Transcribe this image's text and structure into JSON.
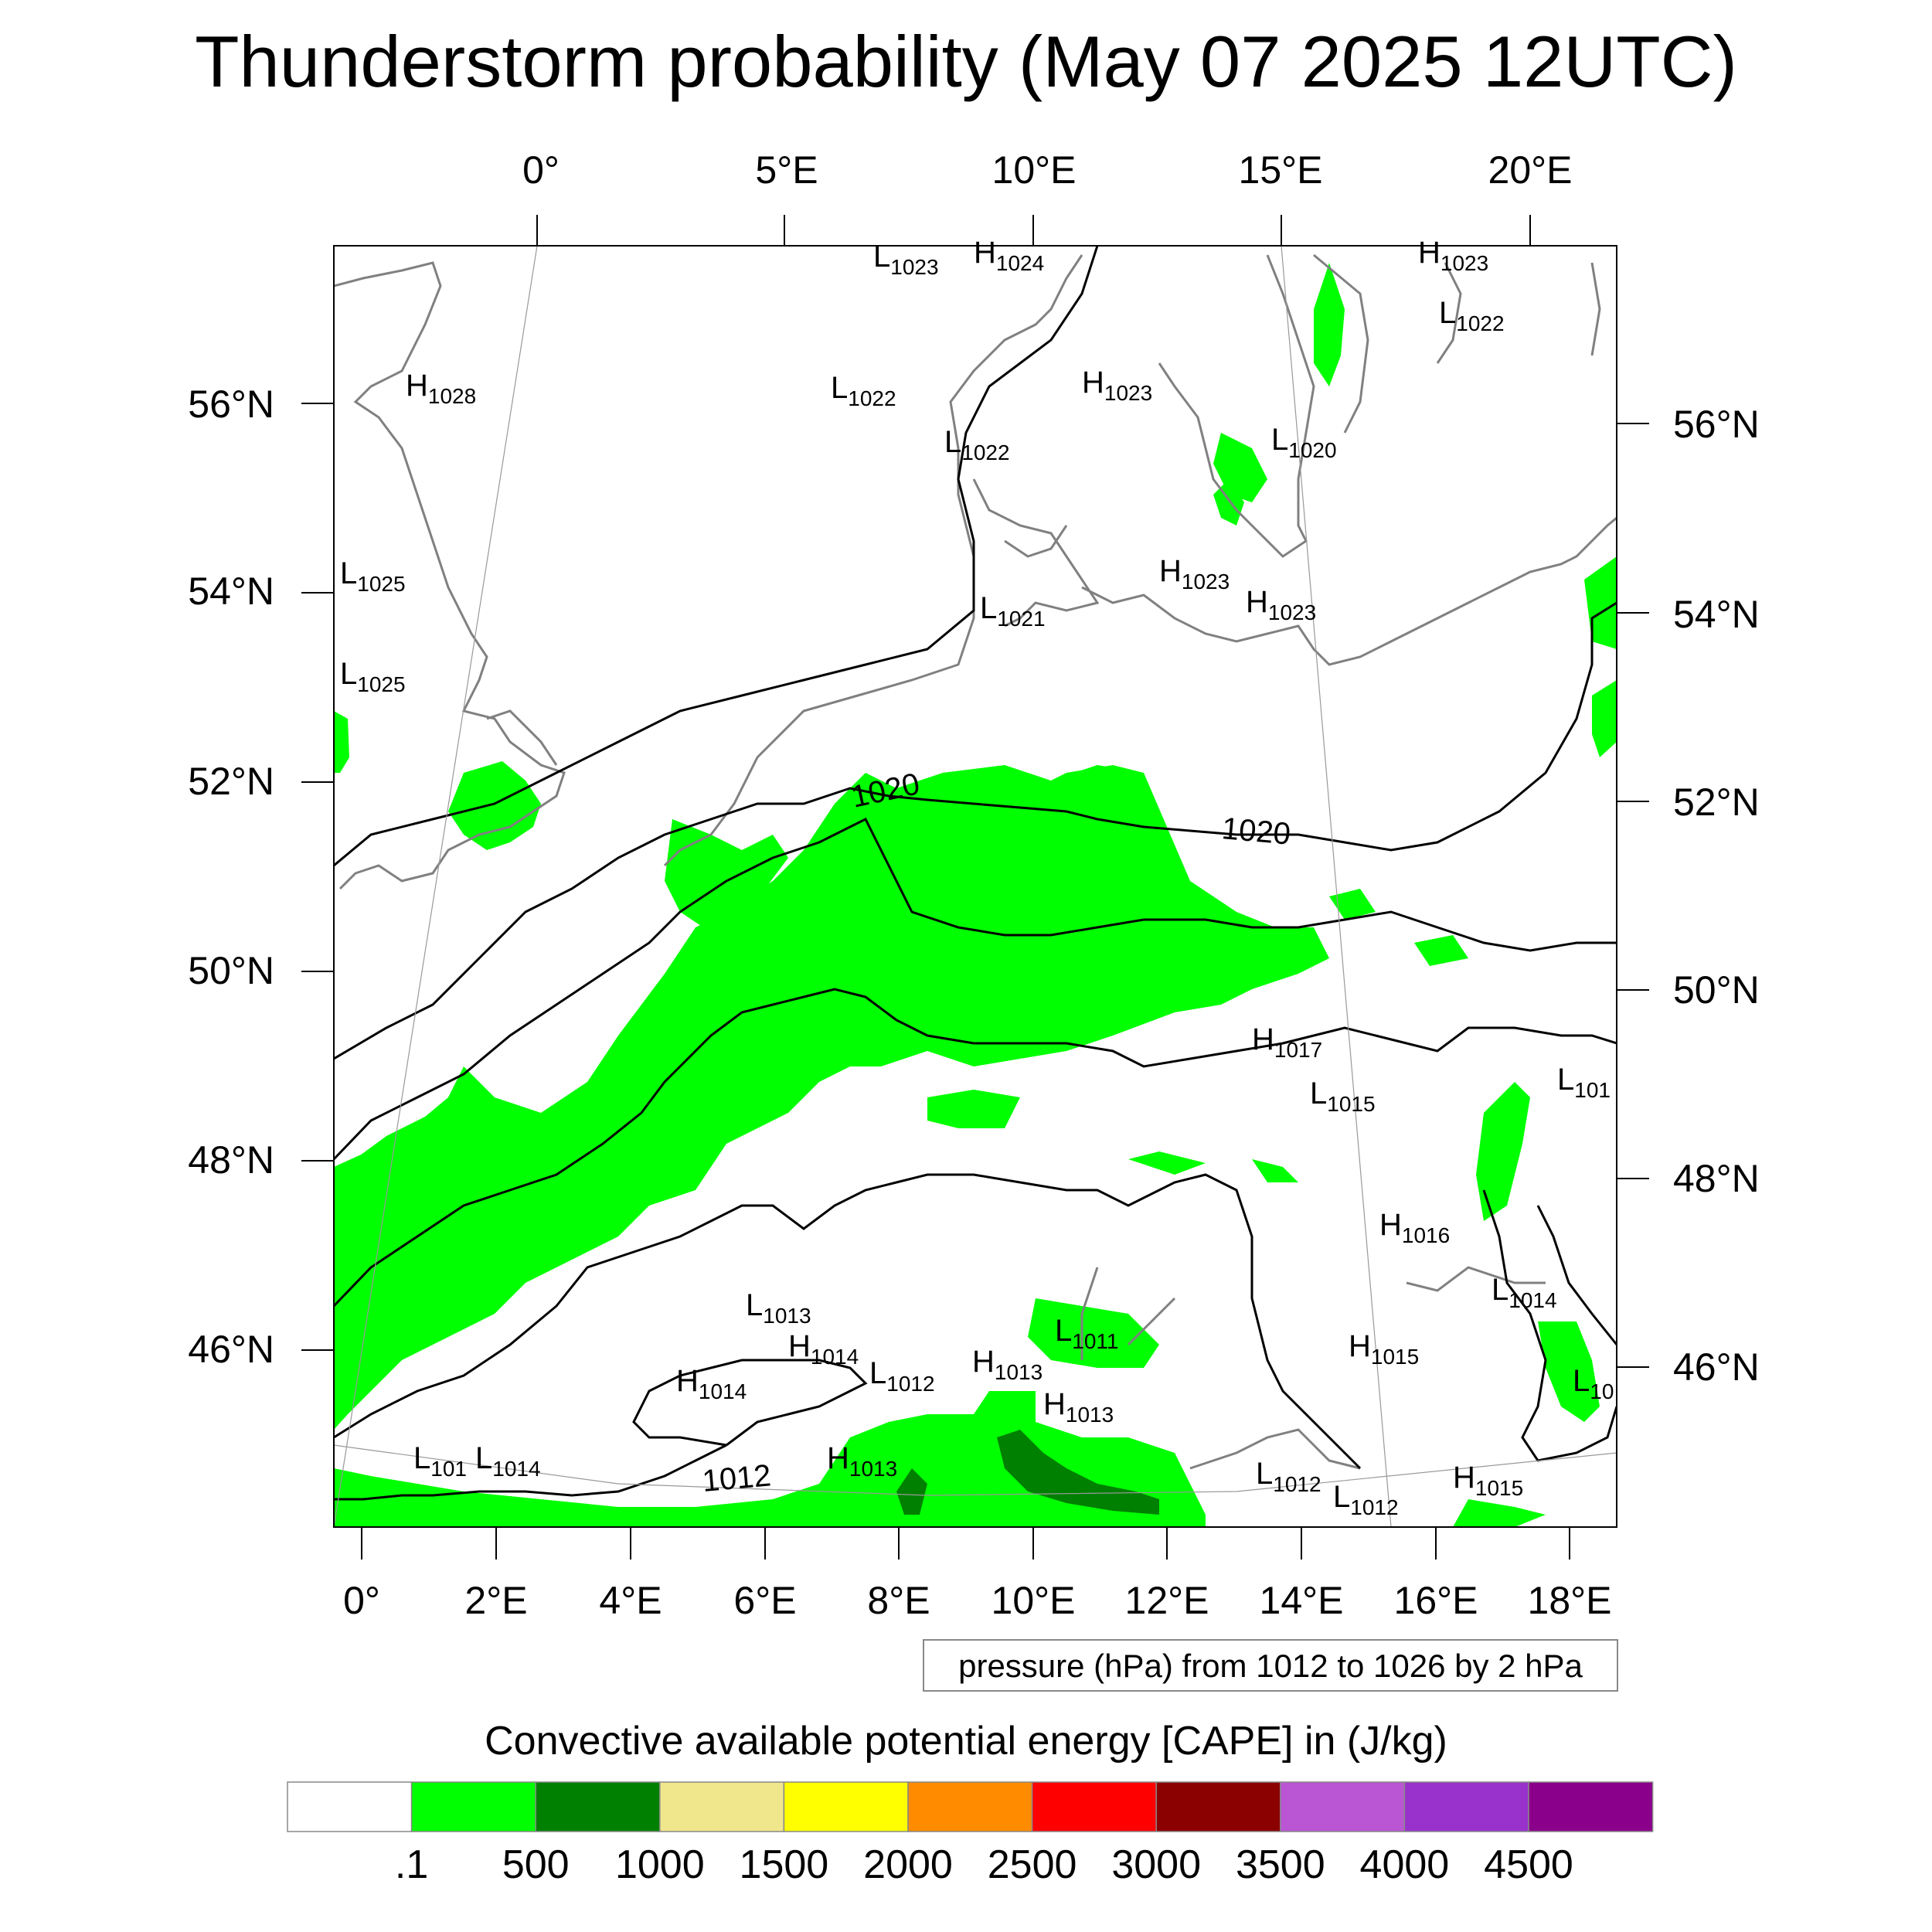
{
  "title": "Thunderstorm probability (May 07 2025 12UTC)",
  "axes": {
    "top_lon_labels": [
      "0°",
      "5°E",
      "10°E",
      "15°E",
      "20°E"
    ],
    "bottom_lon_labels": [
      "0°",
      "2°E",
      "4°E",
      "6°E",
      "8°E",
      "10°E",
      "12°E",
      "14°E",
      "16°E",
      "18°E"
    ],
    "left_lat_labels": [
      "56°N",
      "54°N",
      "52°N",
      "50°N",
      "48°N",
      "46°N"
    ],
    "right_lat_labels": [
      "56°N",
      "54°N",
      "52°N",
      "50°N",
      "48°N",
      "46°N"
    ]
  },
  "pressure_note": "pressure (hPa) from 1012 to 1026 by 2 hPa",
  "isobar_labels": [
    "1020",
    "1020",
    "1012"
  ],
  "pressure_centers": [
    {
      "type": "L",
      "value": "1023"
    },
    {
      "type": "H",
      "value": "1024"
    },
    {
      "type": "H",
      "value": "1023"
    },
    {
      "type": "L",
      "value": "1022"
    },
    {
      "type": "H",
      "value": "1028"
    },
    {
      "type": "L",
      "value": "1022"
    },
    {
      "type": "H",
      "value": "1023"
    },
    {
      "type": "L",
      "value": "1022"
    },
    {
      "type": "L",
      "value": "1020"
    },
    {
      "type": "L",
      "value": "1025"
    },
    {
      "type": "L",
      "value": "1025"
    },
    {
      "type": "H",
      "value": "1023"
    },
    {
      "type": "H",
      "value": "1023"
    },
    {
      "type": "L",
      "value": "1021"
    },
    {
      "type": "H",
      "value": "1017"
    },
    {
      "type": "L",
      "value": "1015"
    },
    {
      "type": "L",
      "value": "101"
    },
    {
      "type": "H",
      "value": "1016"
    },
    {
      "type": "L",
      "value": "1013"
    },
    {
      "type": "L",
      "value": "1011"
    },
    {
      "type": "H",
      "value": "1014"
    },
    {
      "type": "H",
      "value": "1014"
    },
    {
      "type": "L",
      "value": "1012"
    },
    {
      "type": "H",
      "value": "1013"
    },
    {
      "type": "H",
      "value": "1013"
    },
    {
      "type": "H",
      "value": "1015"
    },
    {
      "type": "L",
      "value": "1014"
    },
    {
      "type": "L",
      "value": "10"
    },
    {
      "type": "L",
      "value": "101"
    },
    {
      "type": "L",
      "value": "1014"
    },
    {
      "type": "H",
      "value": "1013"
    },
    {
      "type": "L",
      "value": "1012"
    },
    {
      "type": "L",
      "value": "1012"
    },
    {
      "type": "H",
      "value": "1015"
    }
  ],
  "legend": {
    "title": "Convective available potential energy [CAPE] in (J/kg)",
    "colors": [
      "#ffffff",
      "#00ff00",
      "#008000",
      "#f0e68c",
      "#ffff00",
      "#ff8c00",
      "#ff0000",
      "#8b0000",
      "#ba55d3",
      "#9932cc",
      "#8b008b"
    ],
    "labels": [
      ".1",
      "500",
      "1000",
      "1500",
      "2000",
      "2500",
      "3000",
      "3500",
      "4000",
      "4500"
    ]
  },
  "colors": {
    "cape_light": "#00ff00",
    "cape_dark": "#008000",
    "coast": "#808080",
    "isobar": "#000000"
  }
}
